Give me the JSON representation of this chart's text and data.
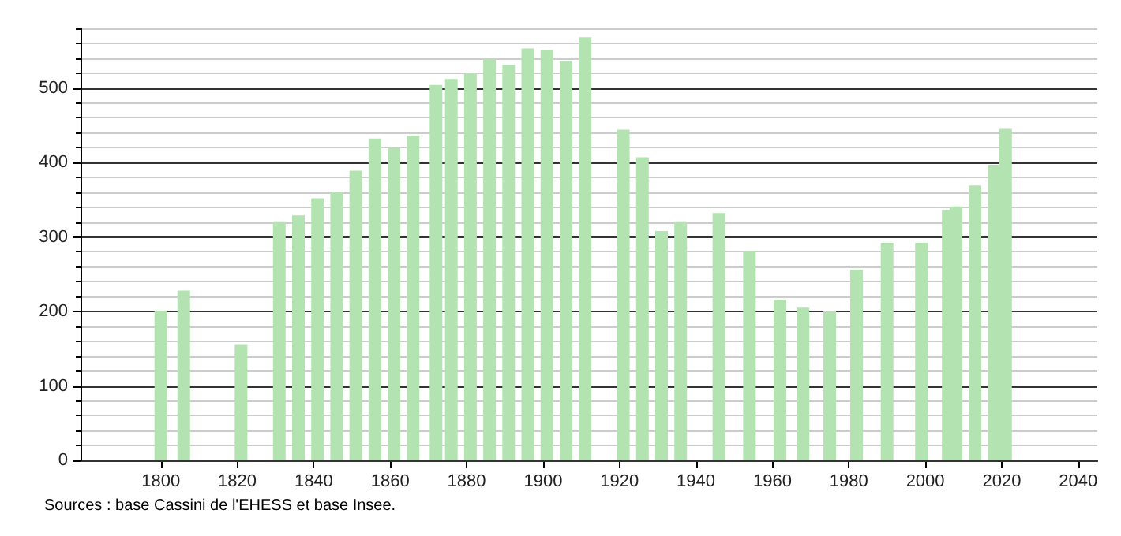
{
  "chart_data": {
    "type": "bar",
    "x": [
      1800,
      1806,
      1821,
      1831,
      1836,
      1841,
      1846,
      1851,
      1856,
      1861,
      1866,
      1872,
      1876,
      1881,
      1886,
      1891,
      1896,
      1901,
      1906,
      1911,
      1921,
      1926,
      1931,
      1936,
      1946,
      1954,
      1962,
      1968,
      1975,
      1982,
      1990,
      1999,
      2006,
      2008,
      2013,
      2018,
      2021
    ],
    "values": [
      201,
      228,
      155,
      320,
      329,
      352,
      361,
      389,
      432,
      419,
      436,
      504,
      512,
      520,
      539,
      531,
      553,
      551,
      536,
      568,
      444,
      407,
      308,
      320,
      332,
      281,
      216,
      205,
      200,
      256,
      292,
      292,
      336,
      341,
      369,
      397,
      445
    ],
    "color": "#b3e3b0",
    "xlim": [
      1779,
      2045
    ],
    "xticks": [
      1800,
      1820,
      1840,
      1860,
      1880,
      1900,
      1920,
      1940,
      1960,
      1980,
      2000,
      2020,
      2040
    ],
    "ylim": [
      0,
      580
    ],
    "yticks": [
      0,
      100,
      200,
      300,
      400,
      500
    ],
    "grid": "y",
    "annotations": [
      "Sources : base Cassini de l'EHESS et base Insee."
    ]
  }
}
